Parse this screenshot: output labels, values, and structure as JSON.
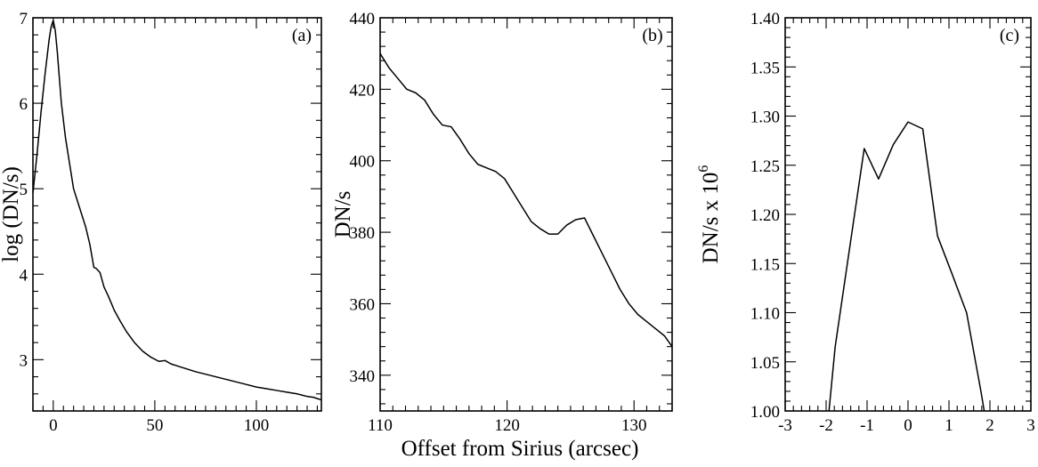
{
  "figure": {
    "xlabel": "Offset from Sirius (arcsec)"
  },
  "chart_data": [
    {
      "type": "line",
      "panel_label": "(a)",
      "xlabel": "",
      "ylabel": "log (DN/s)",
      "xlim": [
        -10,
        132
      ],
      "ylim": [
        2.4,
        7.0
      ],
      "xticks": [
        0,
        50,
        100
      ],
      "xtick_labels": [
        "0",
        "50",
        "100"
      ],
      "x_minor_step": 5,
      "yticks": [
        3,
        4,
        5,
        6,
        7
      ],
      "ytick_labels": [
        "3",
        "4",
        "5",
        "6",
        "7"
      ],
      "y_minor_step": 0.2,
      "grid": false,
      "series": [
        {
          "x": [
            -10,
            -8,
            -6,
            -4,
            -2,
            -1,
            0,
            1,
            2,
            3,
            4,
            6,
            8,
            10,
            12,
            14,
            16,
            18,
            20,
            21,
            23,
            25,
            27,
            30,
            33,
            36,
            40,
            44,
            48,
            52,
            55,
            58,
            62,
            66,
            70,
            75,
            80,
            85,
            90,
            95,
            100,
            105,
            110,
            115,
            120,
            125,
            128,
            132
          ],
          "y": [
            4.95,
            5.4,
            5.9,
            6.35,
            6.75,
            6.9,
            6.97,
            6.85,
            6.6,
            6.3,
            6.0,
            5.6,
            5.3,
            5.0,
            4.85,
            4.7,
            4.55,
            4.35,
            4.08,
            4.07,
            4.02,
            3.85,
            3.75,
            3.58,
            3.45,
            3.33,
            3.2,
            3.1,
            3.03,
            2.98,
            2.99,
            2.95,
            2.92,
            2.89,
            2.86,
            2.83,
            2.8,
            2.77,
            2.74,
            2.71,
            2.68,
            2.66,
            2.64,
            2.62,
            2.6,
            2.57,
            2.56,
            2.53
          ]
        }
      ]
    },
    {
      "type": "line",
      "panel_label": "(b)",
      "xlabel": "",
      "ylabel": "DN/s",
      "xlim": [
        110,
        133
      ],
      "ylim": [
        330,
        440
      ],
      "xticks": [
        110,
        120,
        130
      ],
      "xtick_labels": [
        "110",
        "120",
        "130"
      ],
      "x_minor_step": 1,
      "yticks": [
        340,
        360,
        380,
        400,
        420,
        440
      ],
      "ytick_labels": [
        "340",
        "360",
        "380",
        "400",
        "420",
        "440"
      ],
      "y_minor_step": 4,
      "grid": false,
      "series": [
        {
          "x": [
            110,
            110.7,
            111.4,
            112.1,
            112.8,
            113.5,
            114.2,
            114.9,
            115.6,
            116.3,
            117.0,
            117.7,
            118.4,
            119.1,
            119.8,
            120.5,
            121.2,
            121.9,
            122.6,
            123.3,
            124.0,
            124.7,
            125.4,
            126.1,
            126.8,
            127.5,
            128.2,
            128.9,
            129.6,
            130.3,
            131.0,
            131.7,
            132.4,
            133
          ],
          "y": [
            430,
            426,
            423,
            420,
            419,
            417,
            413,
            410,
            409.5,
            406,
            402,
            399,
            398,
            397,
            395,
            391,
            387,
            383,
            381,
            379.5,
            379.5,
            382,
            383.5,
            384,
            379,
            374,
            369,
            364,
            360,
            357,
            355,
            353,
            351,
            348
          ]
        }
      ]
    },
    {
      "type": "line",
      "panel_label": "(c)",
      "xlabel": "",
      "ylabel": "DN/s x 10",
      "ylabel_superscript": "6",
      "xlim": [
        -3,
        3
      ],
      "ylim": [
        1.0,
        1.4
      ],
      "xticks": [
        -3,
        -2,
        -1,
        0,
        1,
        2,
        3
      ],
      "xtick_labels": [
        "-3",
        "-2",
        "-1",
        "0",
        "1",
        "2",
        "3"
      ],
      "x_minor_step": 0.2,
      "yticks": [
        1.0,
        1.05,
        1.1,
        1.15,
        1.2,
        1.25,
        1.3,
        1.35,
        1.4
      ],
      "ytick_labels": [
        "1.00",
        "1.05",
        "1.10",
        "1.15",
        "1.20",
        "1.25",
        "1.30",
        "1.35",
        "1.40"
      ],
      "y_minor_step": 0.01,
      "grid": false,
      "series": [
        {
          "x": [
            -1.93,
            -1.78,
            -1.07,
            -0.72,
            -0.36,
            0.0,
            0.36,
            0.72,
            1.07,
            1.43,
            1.78,
            1.86
          ],
          "y": [
            1.0,
            1.065,
            1.267,
            1.236,
            1.271,
            1.294,
            1.287,
            1.178,
            1.14,
            1.1,
            1.02,
            1.0
          ]
        }
      ]
    }
  ]
}
